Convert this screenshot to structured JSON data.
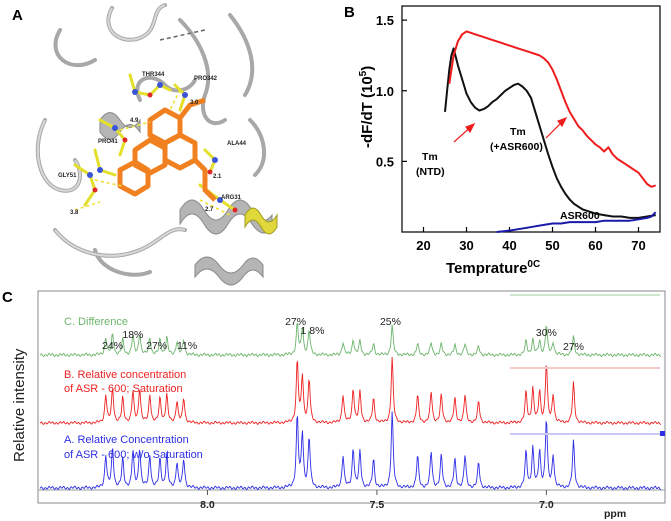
{
  "panels": {
    "A": "A",
    "B": "B",
    "C": "C"
  },
  "structure": {
    "residue_labels": [
      "THR344",
      "PRO342",
      "PRO41",
      "GLY51",
      "ALA44",
      "ARG31"
    ],
    "distances": [
      "4.9",
      "3.0",
      "3.8",
      "2.1",
      "2.7"
    ]
  },
  "chart_data": [
    {
      "type": "line",
      "panel": "B",
      "title": "",
      "xlabel": "Temprature",
      "xlabel_suffix": "0C",
      "ylabel": "-dF/dT (10",
      "ylabel_exp": "5",
      "ylabel_close": ")",
      "xlim": [
        15,
        75
      ],
      "ylim": [
        0,
        1.6
      ],
      "xticks": [
        20,
        30,
        40,
        50,
        60,
        70
      ],
      "yticks": [
        0.5,
        1.0,
        1.5
      ],
      "ytick_labels": [
        "0.5",
        "1.0",
        "1.5"
      ],
      "colors": {
        "tm_ntd": "#111111",
        "tm_asr": "#ee1c1c",
        "asr600": "#1a1aa8"
      },
      "series": [
        {
          "key": "tm_ntd",
          "x": [
            25.0,
            25.5,
            26.0,
            26.5,
            27.0,
            28.0,
            29.0,
            30.0,
            31.0,
            32.0,
            33.0,
            34.0,
            35.0,
            36.0,
            37.0,
            38.0,
            39.0,
            40.0,
            41.0,
            42.0,
            43.0,
            44.0,
            45.0,
            46.0,
            47.0,
            48.0,
            49.0,
            50.0,
            51.0,
            52.0,
            53.0,
            54.0,
            55.0,
            56.0,
            57.0,
            58.0,
            59.0,
            60.0,
            62.0,
            64.0,
            66.0,
            68.0,
            70.0,
            72.0,
            74.0
          ],
          "y": [
            0.85,
            1.0,
            1.15,
            1.25,
            1.3,
            1.18,
            1.08,
            0.98,
            0.92,
            0.88,
            0.86,
            0.87,
            0.89,
            0.92,
            0.94,
            0.97,
            1.0,
            1.02,
            1.04,
            1.05,
            1.03,
            1.0,
            0.95,
            0.85,
            0.75,
            0.65,
            0.55,
            0.46,
            0.38,
            0.32,
            0.27,
            0.23,
            0.2,
            0.18,
            0.16,
            0.15,
            0.14,
            0.13,
            0.12,
            0.11,
            0.11,
            0.1,
            0.1,
            0.11,
            0.12
          ]
        },
        {
          "key": "tm_asr",
          "x": [
            26.0,
            27.0,
            28.0,
            29.0,
            30.0,
            31.0,
            32.0,
            34.0,
            36.0,
            38.0,
            40.0,
            42.0,
            44.0,
            45.0,
            46.0,
            47.0,
            48.0,
            49.0,
            50.0,
            51.0,
            52.0,
            53.0,
            54.0,
            55.0,
            56.0,
            57.0,
            58.0,
            59.0,
            60.0,
            61.0,
            62.0,
            63.0,
            64.0,
            65.0,
            66.0,
            67.0,
            68.0,
            69.0,
            70.0,
            71.0,
            72.0,
            73.0,
            74.0
          ],
          "y": [
            1.05,
            1.25,
            1.35,
            1.4,
            1.42,
            1.41,
            1.4,
            1.38,
            1.36,
            1.34,
            1.32,
            1.3,
            1.28,
            1.27,
            1.26,
            1.25,
            1.23,
            1.2,
            1.15,
            1.08,
            1.0,
            0.92,
            0.85,
            0.8,
            0.75,
            0.72,
            0.68,
            0.65,
            0.62,
            0.6,
            0.57,
            0.6,
            0.55,
            0.52,
            0.5,
            0.48,
            0.46,
            0.44,
            0.42,
            0.38,
            0.34,
            0.32,
            0.33
          ]
        },
        {
          "key": "asr600",
          "x": [
            37.0,
            40.0,
            42.0,
            44.0,
            46.0,
            48.0,
            50.0,
            52.0,
            54.0,
            56.0,
            58.0,
            60.0,
            62.0,
            64.0,
            66.0,
            68.0,
            70.0,
            72.0,
            73.0,
            74.0
          ],
          "y": [
            0.0,
            0.01,
            0.02,
            0.03,
            0.04,
            0.05,
            0.06,
            0.06,
            0.07,
            0.07,
            0.07,
            0.07,
            0.08,
            0.08,
            0.08,
            0.08,
            0.09,
            0.1,
            0.11,
            0.14
          ]
        }
      ],
      "annotations": {
        "tm_ntd_line1": "Tm",
        "tm_ntd_line2": "(NTD)",
        "tm_asr_line1": "Tm",
        "tm_asr_line2": "(+ASR600)",
        "asr600": "ASR600"
      }
    },
    {
      "type": "line",
      "panel": "C",
      "title": "",
      "xlabel": "ppm",
      "ylabel": "Relative intensity",
      "xlim": [
        8.5,
        6.65
      ],
      "x_reversed": true,
      "xticks": [
        8.0,
        7.5,
        7.0
      ],
      "xtick_labels": [
        "8.0",
        "7.5",
        "7.0"
      ],
      "colors": {
        "diff": "#6db56d",
        "sat": "#ee2222",
        "nosat": "#2e2ee6"
      },
      "series": [
        {
          "key": "diff",
          "label": "C.  Difference"
        },
        {
          "key": "sat",
          "label_line1": "B.   Relative concentration",
          "label_line2": "of ASR      - 600; Saturation"
        },
        {
          "key": "nosat",
          "label_line1": "A.    Relative Concentration",
          "label_line2": "of ASR      - 600; w/o         Saturation"
        }
      ],
      "peaks": [
        {
          "ppm": 8.3,
          "amp": 0.45
        },
        {
          "ppm": 8.28,
          "amp": 0.55
        },
        {
          "ppm": 8.25,
          "amp": 0.4
        },
        {
          "ppm": 8.22,
          "amp": 0.5
        },
        {
          "ppm": 8.2,
          "amp": 0.55
        },
        {
          "ppm": 8.17,
          "amp": 0.45
        },
        {
          "ppm": 8.14,
          "amp": 0.4
        },
        {
          "ppm": 8.12,
          "amp": 0.45
        },
        {
          "ppm": 8.09,
          "amp": 0.35
        },
        {
          "ppm": 8.07,
          "amp": 0.4
        },
        {
          "ppm": 7.735,
          "amp": 1.0
        },
        {
          "ppm": 7.72,
          "amp": 0.75
        },
        {
          "ppm": 7.7,
          "amp": 0.7
        },
        {
          "ppm": 7.6,
          "amp": 0.45
        },
        {
          "ppm": 7.57,
          "amp": 0.55
        },
        {
          "ppm": 7.55,
          "amp": 0.5
        },
        {
          "ppm": 7.51,
          "amp": 0.4
        },
        {
          "ppm": 7.455,
          "amp": 1.05
        },
        {
          "ppm": 7.38,
          "amp": 0.45
        },
        {
          "ppm": 7.34,
          "amp": 0.5
        },
        {
          "ppm": 7.31,
          "amp": 0.45
        },
        {
          "ppm": 7.27,
          "amp": 0.4
        },
        {
          "ppm": 7.24,
          "amp": 0.45
        },
        {
          "ppm": 7.2,
          "amp": 0.35
        },
        {
          "ppm": 7.06,
          "amp": 0.5
        },
        {
          "ppm": 7.04,
          "amp": 0.55
        },
        {
          "ppm": 7.02,
          "amp": 0.5
        },
        {
          "ppm": 7.0,
          "amp": 0.95
        },
        {
          "ppm": 6.98,
          "amp": 0.45
        },
        {
          "ppm": 6.92,
          "amp": 0.65
        }
      ],
      "diff_scale": [
        0.55,
        0.55,
        0.55,
        0.55,
        0.55,
        0.55,
        0.55,
        0.55,
        0.55,
        0.55,
        0.45,
        0.5,
        0.5,
        0.4,
        0.4,
        0.4,
        0.4,
        0.4,
        0.35,
        0.35,
        0.35,
        0.35,
        0.35,
        0.35,
        0.4,
        0.4,
        0.4,
        0.45,
        0.4,
        0.4
      ],
      "percent_labels": [
        {
          "text": "24%",
          "ppm": 8.28
        },
        {
          "text": "18%",
          "ppm": 8.22
        },
        {
          "text": "27%",
          "ppm": 8.15
        },
        {
          "text": "11%",
          "ppm": 8.06
        },
        {
          "text": "27%",
          "ppm": 7.74
        },
        {
          "text": "1 8%",
          "ppm": 7.69
        },
        {
          "text": "25%",
          "ppm": 7.46
        },
        {
          "text": "30%",
          "ppm": 7.0
        },
        {
          "text": "27%",
          "ppm": 6.92
        }
      ]
    }
  ]
}
